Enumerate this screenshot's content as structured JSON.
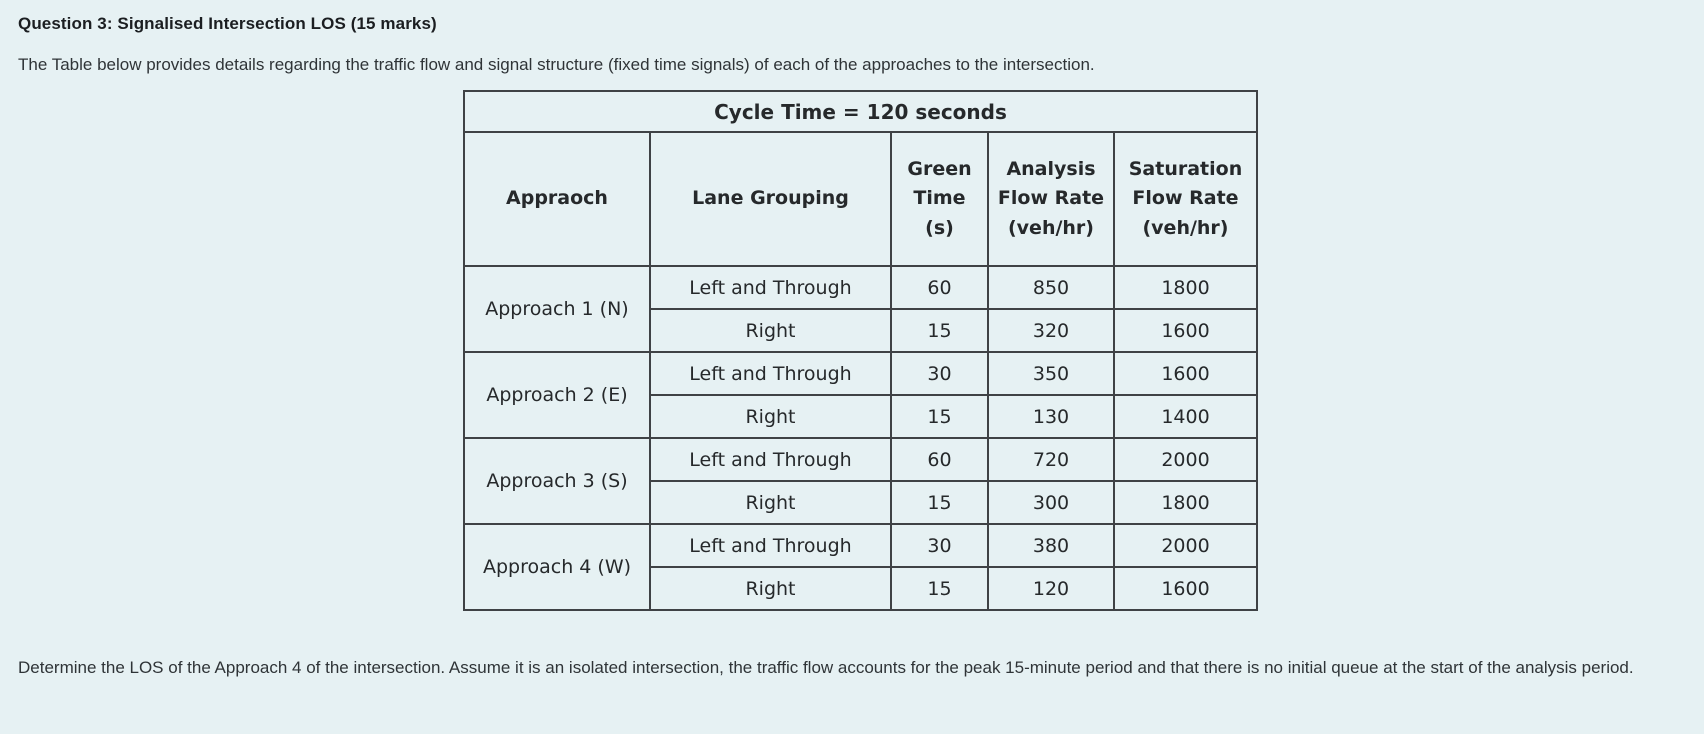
{
  "page": {
    "title": "Question 3: Signalised Intersection LOS (15 marks)",
    "intro": "The Table below provides details regarding the traffic flow and signal structure (fixed time signals) of each of the approaches to the intersection.",
    "footer": "Determine the LOS of the Approach 4 of the intersection. Assume it is an isolated intersection, the traffic flow accounts for the peak 15-minute period and that there is no initial queue at the start of the analysis period."
  },
  "table": {
    "caption": "Cycle Time = 120 seconds",
    "columns": [
      "Appraoch",
      "Lane Grouping",
      "Green Time (s)",
      "Analysis Flow Rate (veh/hr)",
      "Saturation Flow Rate (veh/hr)"
    ],
    "groups": [
      {
        "approach": "Approach 1 (N)",
        "rows": [
          {
            "lane": "Left and Through",
            "green": "60",
            "analysis": "850",
            "saturation": "1800"
          },
          {
            "lane": "Right",
            "green": "15",
            "analysis": "320",
            "saturation": "1600"
          }
        ]
      },
      {
        "approach": "Approach 2 (E)",
        "rows": [
          {
            "lane": "Left and Through",
            "green": "30",
            "analysis": "350",
            "saturation": "1600"
          },
          {
            "lane": "Right",
            "green": "15",
            "analysis": "130",
            "saturation": "1400"
          }
        ]
      },
      {
        "approach": "Approach 3 (S)",
        "rows": [
          {
            "lane": "Left and Through",
            "green": "60",
            "analysis": "720",
            "saturation": "2000"
          },
          {
            "lane": "Right",
            "green": "15",
            "analysis": "300",
            "saturation": "1800"
          }
        ]
      },
      {
        "approach": "Approach 4 (W)",
        "rows": [
          {
            "lane": "Left and Through",
            "green": "30",
            "analysis": "380",
            "saturation": "2000"
          },
          {
            "lane": "Right",
            "green": "15",
            "analysis": "120",
            "saturation": "1600"
          }
        ]
      }
    ]
  },
  "colors": {
    "background": "#e6f1f3",
    "table_border": "#3f4245",
    "title_text": "#1b1e21",
    "body_text": "#2f3437",
    "table_text": "#26292b"
  }
}
